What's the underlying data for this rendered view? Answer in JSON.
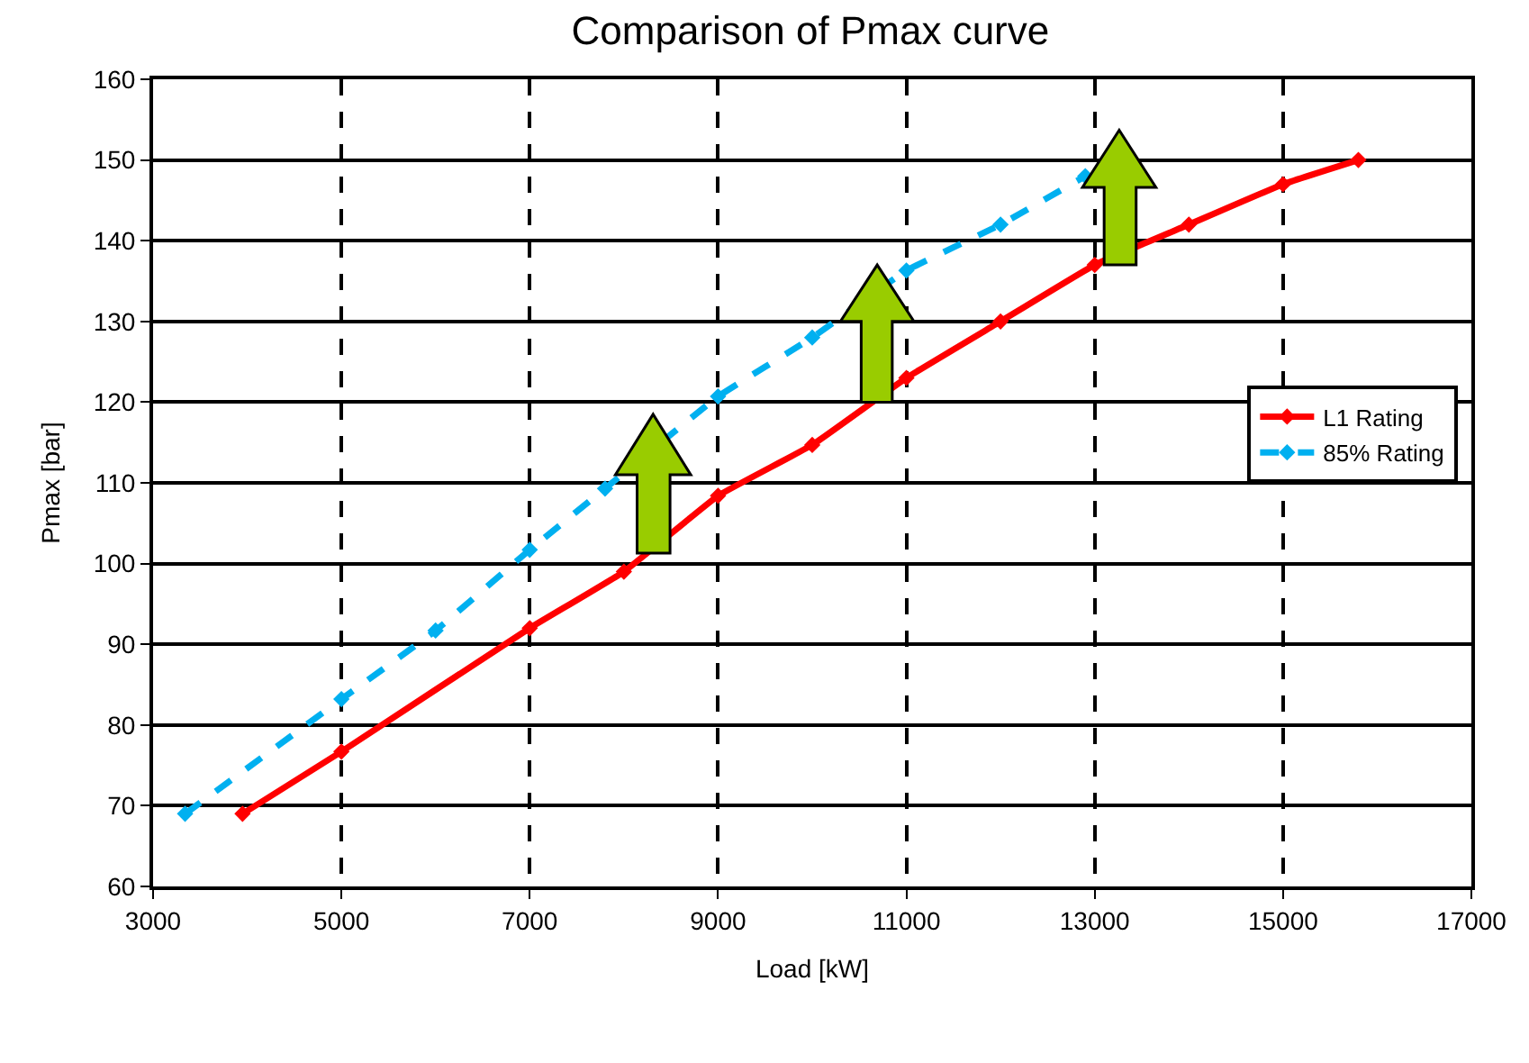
{
  "chart_data": {
    "type": "line",
    "title": "Comparison of Pmax curve",
    "xlabel": "Load [kW]",
    "ylabel": "Pmax [bar]",
    "xlim": [
      3000,
      17000
    ],
    "xticks": [
      3000,
      5000,
      7000,
      9000,
      11000,
      13000,
      15000,
      17000
    ],
    "ylim": [
      60,
      160
    ],
    "yticks": [
      60,
      70,
      80,
      90,
      100,
      110,
      120,
      130,
      140,
      150,
      160
    ],
    "grid": true,
    "legend": "right",
    "marker": "diamond",
    "series": [
      {
        "name": "L1 Rating",
        "color": "#ff0000",
        "line_style": "solid",
        "x": [
          3950,
          5000,
          7000,
          8000,
          9000,
          10000,
          11000,
          12000,
          13000,
          14000,
          15000,
          15800
        ],
        "values": [
          69,
          76.7,
          92,
          99,
          108.4,
          114.7,
          123,
          130,
          137,
          142,
          147,
          150
        ]
      },
      {
        "name": "85% Rating",
        "color": "#00b0f0",
        "line_style": "dashed",
        "x": [
          3340,
          5000,
          6000,
          7000,
          7800,
          9000,
          10000,
          11000,
          12000,
          12900
        ],
        "values": [
          69,
          83.2,
          91.7,
          101.7,
          109.3,
          120.7,
          128,
          136.3,
          142,
          148
        ]
      }
    ]
  }
}
